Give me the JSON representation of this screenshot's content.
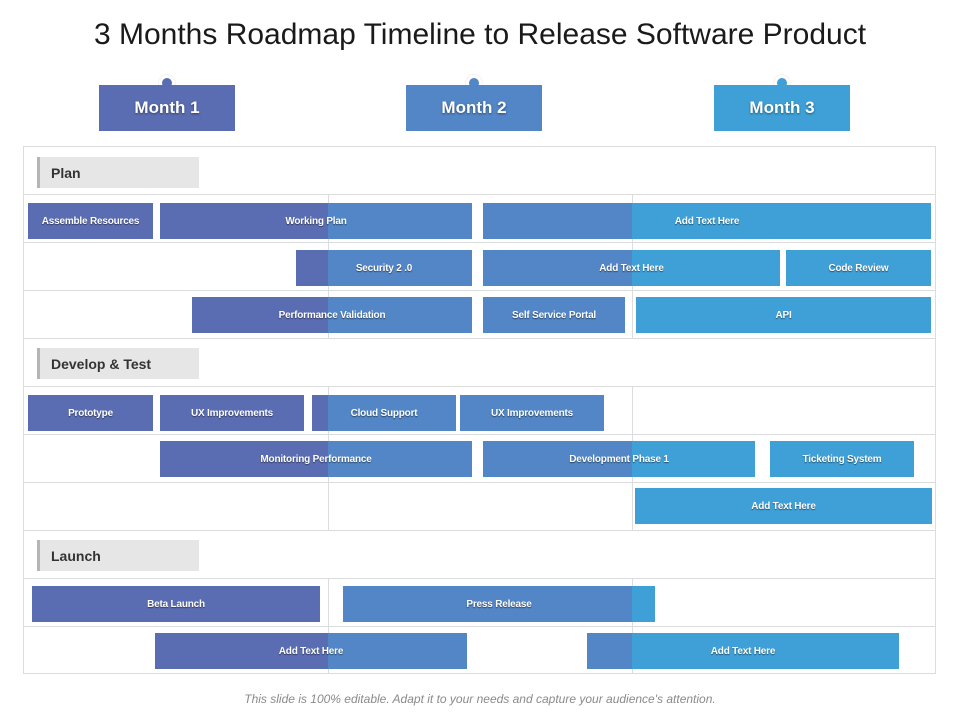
{
  "title": "3 Months Roadmap Timeline to Release Software Product",
  "colors": {
    "m1": "#5b6db2",
    "m2": "#5286c6",
    "m3": "#3ea0d7"
  },
  "months": [
    "Month 1",
    "Month 2",
    "Month 3"
  ],
  "sections": [
    "Plan",
    "Develop & Test",
    "Launch"
  ],
  "bars": [
    "Assemble Resources",
    "Working Plan",
    "Add Text Here",
    "Security 2 .0",
    "Add Text Here",
    "Code Review",
    "Performance Validation",
    "Self Service Portal",
    "API",
    "Prototype",
    "UX Improvements",
    "Cloud Support",
    "UX Improvements",
    "Monitoring Performance",
    "Development Phase 1",
    "Ticketing System",
    "Add Text Here",
    "Beta Launch",
    "Press Release",
    "Add Text Here",
    "Add Text Here"
  ],
  "footer": "This slide is 100% editable. Adapt it to your needs and capture your audience's attention."
}
